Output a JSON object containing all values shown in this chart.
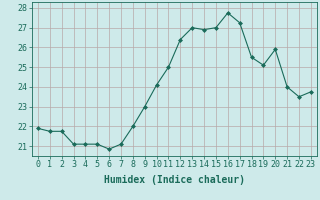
{
  "x": [
    0,
    1,
    2,
    3,
    4,
    5,
    6,
    7,
    8,
    9,
    10,
    11,
    12,
    13,
    14,
    15,
    16,
    17,
    18,
    19,
    20,
    21,
    22,
    23
  ],
  "y": [
    21.9,
    21.75,
    21.75,
    21.1,
    21.1,
    21.1,
    20.85,
    21.1,
    22.0,
    23.0,
    24.1,
    25.0,
    26.4,
    27.0,
    26.9,
    27.0,
    27.75,
    27.25,
    25.5,
    25.1,
    25.9,
    24.0,
    23.5,
    23.75
  ],
  "line_color": "#1a6b5a",
  "marker": "D",
  "marker_size": 2.0,
  "bg_color": "#ceeaea",
  "grid_color": "#b8a8a8",
  "xlabel": "Humidex (Indice chaleur)",
  "ylim": [
    20.5,
    28.3
  ],
  "yticks": [
    21,
    22,
    23,
    24,
    25,
    26,
    27,
    28
  ],
  "xticks": [
    0,
    1,
    2,
    3,
    4,
    5,
    6,
    7,
    8,
    9,
    10,
    11,
    12,
    13,
    14,
    15,
    16,
    17,
    18,
    19,
    20,
    21,
    22,
    23
  ],
  "tick_color": "#1a6b5a",
  "label_fontsize": 7.0,
  "tick_fontsize": 6.0
}
